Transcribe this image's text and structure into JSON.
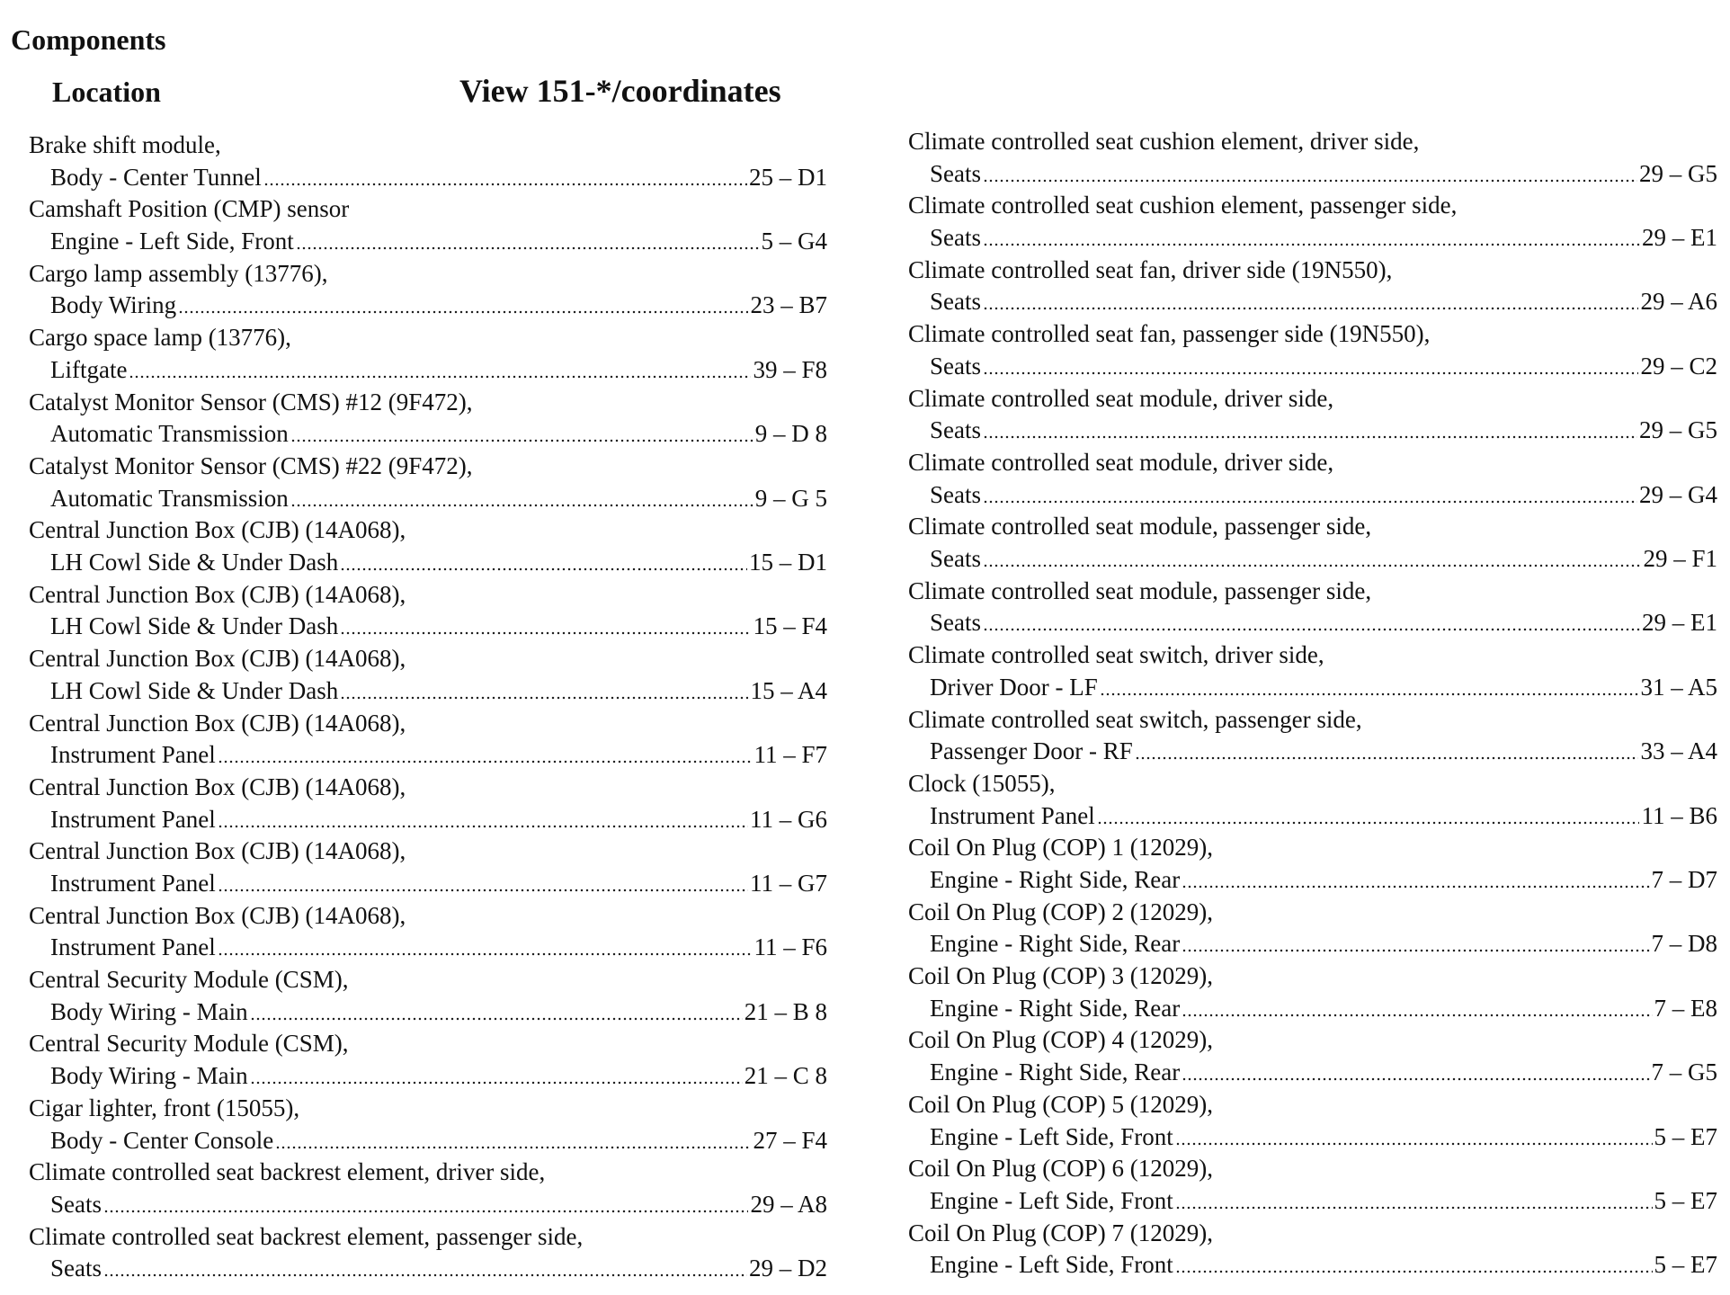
{
  "title": "Components",
  "headers": {
    "location": "Location",
    "view": "View 151-*/coordinates"
  },
  "columns": [
    [
      {
        "name": "Brake shift module,",
        "location": "Body - Center Tunnel",
        "ref": "25 – D1"
      },
      {
        "name": "Camshaft Position (CMP) sensor",
        "location": "Engine - Left Side, Front",
        "ref": "5 – G4"
      },
      {
        "name": "Cargo lamp assembly (13776),",
        "location": "Body Wiring",
        "ref": "23 – B7"
      },
      {
        "name": "Cargo space lamp (13776),",
        "location": "Liftgate",
        "ref": "39 – F8"
      },
      {
        "name": "Catalyst Monitor Sensor (CMS) #12 (9F472),",
        "location": "Automatic Transmission",
        "ref": "9 – D 8"
      },
      {
        "name": "Catalyst Monitor Sensor (CMS) #22 (9F472),",
        "location": "Automatic Transmission",
        "ref": "9 – G 5"
      },
      {
        "name": "Central Junction Box (CJB) (14A068),",
        "location": "LH Cowl Side & Under Dash",
        "ref": "15 – D1"
      },
      {
        "name": "Central Junction Box (CJB) (14A068),",
        "location": "LH Cowl Side & Under Dash",
        "ref": "15 – F4"
      },
      {
        "name": "Central Junction Box (CJB) (14A068),",
        "location": "LH Cowl Side & Under Dash",
        "ref": "15 – A4"
      },
      {
        "name": "Central Junction Box (CJB) (14A068),",
        "location": "Instrument Panel",
        "ref": "11 – F7"
      },
      {
        "name": "Central Junction Box (CJB) (14A068),",
        "location": "Instrument Panel",
        "ref": "11 – G6"
      },
      {
        "name": "Central Junction Box (CJB) (14A068),",
        "location": "Instrument Panel",
        "ref": "11 – G7"
      },
      {
        "name": "Central Junction Box (CJB) (14A068),",
        "location": "Instrument Panel",
        "ref": "11 – F6"
      },
      {
        "name": "Central Security Module (CSM),",
        "location": "Body Wiring - Main",
        "ref": "21 – B 8"
      },
      {
        "name": "Central Security Module (CSM),",
        "location": "Body Wiring - Main",
        "ref": "21 – C 8"
      },
      {
        "name": "Cigar lighter, front (15055),",
        "location": "Body - Center Console",
        "ref": "27 – F4"
      },
      {
        "name": "Climate controlled seat backrest element, driver side,",
        "location": "Seats",
        "ref": "29 – A8"
      },
      {
        "name": "Climate controlled seat backrest element, passenger side,",
        "location": "Seats",
        "ref": "29 – D2"
      }
    ],
    [
      {
        "name": "Climate controlled seat cushion element, driver side,",
        "location": "Seats",
        "ref": "29 – G5"
      },
      {
        "name": "Climate controlled seat cushion element, passenger side,",
        "location": "Seats",
        "ref": "29 – E1"
      },
      {
        "name": "Climate controlled seat fan, driver side (19N550),",
        "location": "Seats",
        "ref": "29 – A6"
      },
      {
        "name": "Climate controlled seat fan, passenger side (19N550),",
        "location": "Seats",
        "ref": "29 – C2"
      },
      {
        "name": "Climate controlled seat module, driver side,",
        "location": "Seats",
        "ref": "29 – G5"
      },
      {
        "name": "Climate controlled seat module, driver side,",
        "location": "Seats",
        "ref": "29 – G4"
      },
      {
        "name": "Climate controlled seat module, passenger side,",
        "location": "Seats",
        "ref": "29 – F1"
      },
      {
        "name": "Climate controlled seat module, passenger side,",
        "location": "Seats",
        "ref": "29 – E1"
      },
      {
        "name": "Climate controlled seat switch, driver side,",
        "location": "Driver Door - LF",
        "ref": "31 – A5"
      },
      {
        "name": "Climate controlled seat switch, passenger side,",
        "location": "Passenger Door - RF",
        "ref": "33 – A4"
      },
      {
        "name": "Clock (15055),",
        "location": "Instrument Panel",
        "ref": "11 – B6"
      },
      {
        "name": "Coil On Plug (COP) 1 (12029),",
        "location": "Engine - Right Side, Rear",
        "ref": "7 – D7"
      },
      {
        "name": "Coil On Plug (COP) 2 (12029),",
        "location": "Engine - Right Side, Rear",
        "ref": "7 – D8"
      },
      {
        "name": "Coil On Plug (COP) 3 (12029),",
        "location": "Engine - Right Side, Rear",
        "ref": "7 – E8"
      },
      {
        "name": "Coil On Plug (COP) 4 (12029),",
        "location": "Engine - Right Side, Rear",
        "ref": "7 – G5"
      },
      {
        "name": "Coil On Plug (COP) 5 (12029),",
        "location": "Engine - Left Side, Front",
        "ref": "5 – E7"
      },
      {
        "name": "Coil On Plug (COP) 6 (12029),",
        "location": "Engine - Left Side, Front",
        "ref": "5 – E7"
      },
      {
        "name": "Coil On Plug (COP) 7 (12029),",
        "location": "Engine - Left Side, Front",
        "ref": "5 – E7"
      }
    ]
  ]
}
